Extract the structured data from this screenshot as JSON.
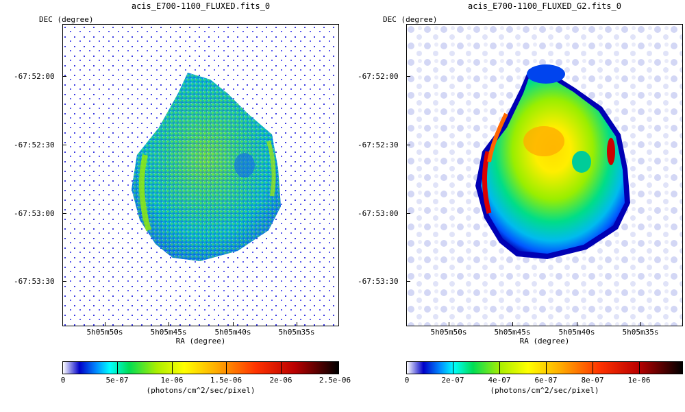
{
  "panels": [
    {
      "title": "acis_E700-1100_FLUXED.fits_0",
      "y_label": "DEC (degree)",
      "x_label": "RA (degree)",
      "y_ticks": [
        "-67:52:00",
        "-67:52:30",
        "-67:53:00",
        "-67:53:30"
      ],
      "x_ticks": [
        "5h05m50s",
        "5h05m45s",
        "5h05m40s",
        "5h05m35s"
      ],
      "colorbar_ticks": [
        "0",
        "5e-07",
        "1e-06",
        "1.5e-06",
        "2e-06",
        "2.5e-06"
      ],
      "colorbar_label": "(photons/cm^2/sec/pixel)"
    },
    {
      "title": "acis_E700-1100_FLUXED_G2.fits_0",
      "y_label": "DEC (degree)",
      "x_label": "RA (degree)",
      "y_ticks": [
        "-67:52:00",
        "-67:52:30",
        "-67:53:00",
        "-67:53:30"
      ],
      "x_ticks": [
        "5h05m50s",
        "5h05m45s",
        "5h05m40s",
        "5h05m35s"
      ],
      "colorbar_ticks": [
        "0",
        "2e-07",
        "4e-07",
        "6e-07",
        "8e-07",
        "1e-06"
      ],
      "colorbar_label": "(photons/cm^2/sec/pixel)"
    }
  ],
  "colors": {
    "colormap": [
      "#ffffff",
      "#0000c8",
      "#0088ff",
      "#00ffff",
      "#00dd55",
      "#aaee00",
      "#ffff00",
      "#ffaa00",
      "#ff3300",
      "#bb0000",
      "#000000"
    ]
  }
}
